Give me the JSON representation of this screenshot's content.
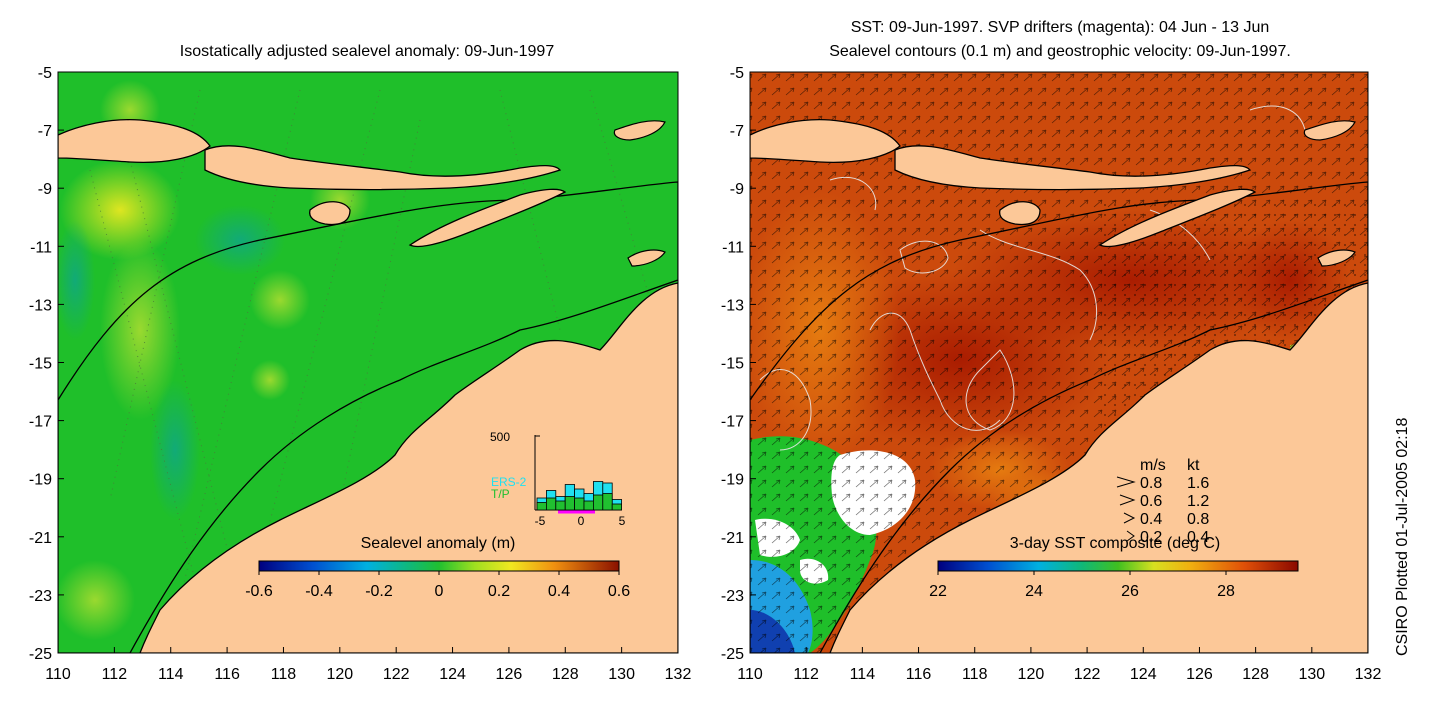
{
  "colors": {
    "land": "#fcc898",
    "ocean_sla": "#1fbf2a",
    "ocean_sst": "#cc4a0c",
    "contour_white": "#ffffff",
    "drifter_magenta": "#ff00ff"
  },
  "left_panel": {
    "title": "Isostatically adjusted sealevel anomaly: 09-Jun-1997",
    "colorbar_label": "Sealevel anomaly (m)",
    "colorbar_ticks": [
      "-0.6",
      "-0.4",
      "-0.2",
      "0",
      "0.2",
      "0.4",
      "0.6"
    ],
    "histogram": {
      "ymax_label": "500",
      "legend_ers": "ERS-2",
      "legend_tp": "T/P",
      "x_ticks": [
        "-5",
        "0",
        "5"
      ],
      "ers_values": [
        80,
        130,
        90,
        170,
        140,
        110,
        190,
        180,
        70
      ],
      "tp_values": [
        50,
        80,
        60,
        90,
        80,
        60,
        100,
        110,
        40
      ]
    }
  },
  "right_panel": {
    "title_line1": "SST: 09-Jun-1997. SVP drifters (magenta): 04 Jun - 13 Jun",
    "title_line2": "Sealevel contours (0.1 m) and geostrophic velocity: 09-Jun-1997.",
    "colorbar_label": "3-day SST composite (deg C)",
    "colorbar_ticks": [
      "22",
      "24",
      "26",
      "28"
    ],
    "velocity_legend": {
      "header_ms": "m/s",
      "header_kt": "kt",
      "rows": [
        {
          "ms": "0.8",
          "kt": "1.6"
        },
        {
          "ms": "0.6",
          "kt": "1.2"
        },
        {
          "ms": "0.4",
          "kt": "0.8"
        },
        {
          "ms": "0.2",
          "kt": "0.4"
        }
      ]
    }
  },
  "axes": {
    "x_ticks": [
      "110",
      "112",
      "114",
      "116",
      "118",
      "120",
      "122",
      "124",
      "126",
      "128",
      "130",
      "132"
    ],
    "y_ticks": [
      "-5",
      "-7",
      "-9",
      "-11",
      "-13",
      "-15",
      "-17",
      "-19",
      "-21",
      "-23",
      "-25"
    ]
  },
  "side_label": "CSIRO Plotted 01-Jul-2005 02:18",
  "chart_data": [
    {
      "type": "heatmap",
      "title": "Isostatically adjusted sealevel anomaly: 09-Jun-1997",
      "xlim": [
        110,
        132
      ],
      "ylim": [
        -25,
        -5
      ],
      "colorbar": {
        "label": "Sealevel anomaly (m)",
        "range": [
          -0.6,
          0.6
        ]
      }
    },
    {
      "type": "bar",
      "ylim": [
        0,
        500
      ],
      "xlim": [
        -5,
        5
      ],
      "series": [
        {
          "name": "ERS-2",
          "values": [
            80,
            130,
            90,
            170,
            140,
            110,
            190,
            180,
            70
          ]
        },
        {
          "name": "T/P",
          "values": [
            50,
            80,
            60,
            90,
            80,
            60,
            100,
            110,
            40
          ]
        }
      ]
    },
    {
      "type": "heatmap",
      "title": "SST: 09-Jun-1997. SVP drifters (magenta): 04 Jun - 13 Jun",
      "xlim": [
        110,
        132
      ],
      "ylim": [
        -25,
        -5
      ],
      "colorbar": {
        "label": "3-day SST composite (deg C)",
        "range": [
          22,
          29.5
        ]
      }
    }
  ]
}
